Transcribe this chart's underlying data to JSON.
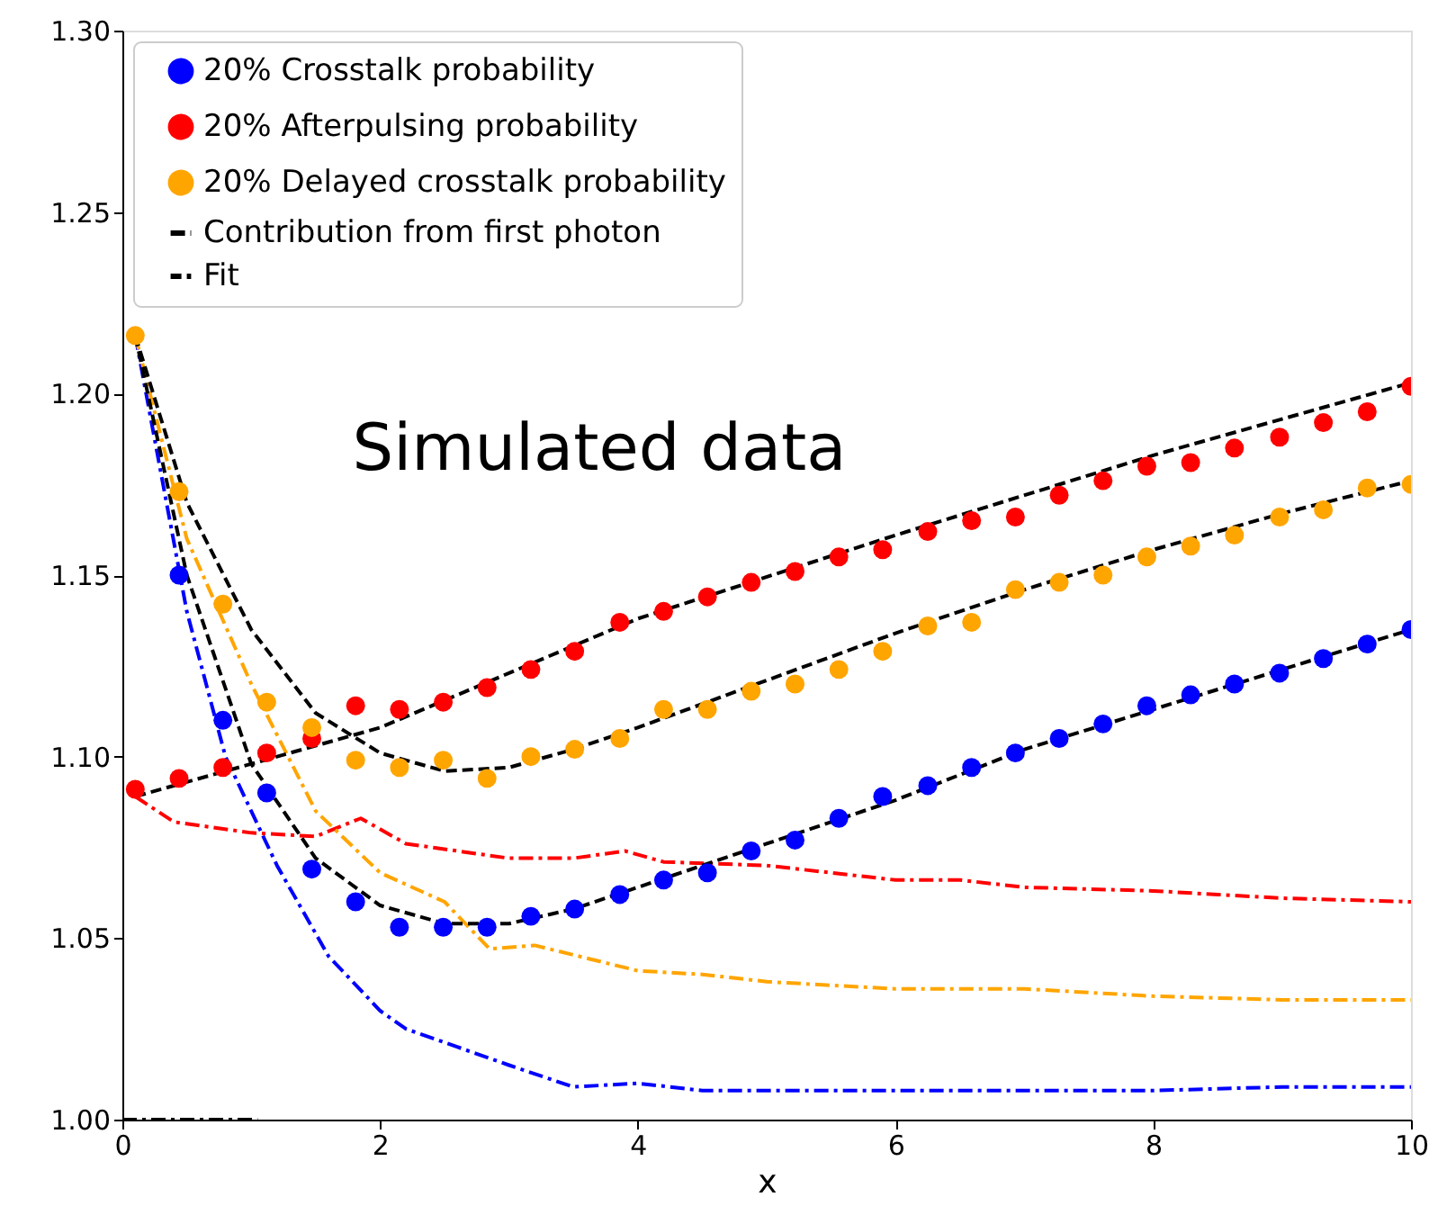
{
  "chart_data": {
    "type": "scatter",
    "xlabel": "x",
    "xlim": [
      0,
      10
    ],
    "xticks": [
      0,
      2,
      4,
      6,
      8,
      10
    ],
    "ylim": [
      1.0,
      1.3
    ],
    "yticks": [
      {
        "value": 1.0,
        "label": "1.00"
      },
      {
        "value": 1.05,
        "label": "1.05"
      },
      {
        "value": 1.1,
        "label": "1.10"
      },
      {
        "value": 1.15,
        "label": "1.15"
      },
      {
        "value": 1.2,
        "label": "1.20"
      },
      {
        "value": 1.25,
        "label": "1.25"
      },
      {
        "value": 1.3,
        "label": "1.30"
      }
    ],
    "x": [
      0.1,
      0.44,
      0.78,
      1.12,
      1.47,
      1.81,
      2.15,
      2.49,
      2.83,
      3.17,
      3.51,
      3.86,
      4.2,
      4.54,
      4.88,
      5.22,
      5.56,
      5.9,
      6.25,
      6.59,
      6.93,
      7.27,
      7.61,
      7.95,
      8.29,
      8.63,
      8.98,
      9.32,
      9.66,
      10.0
    ],
    "grid": false,
    "legend": "top left",
    "annotations": [
      "Simulated data"
    ],
    "series": [
      {
        "name": "20% Crosstalk probability",
        "marker": "circle",
        "color": "#0000ff",
        "values": [
          null,
          1.15,
          1.11,
          1.09,
          1.069,
          1.06,
          1.053,
          1.053,
          1.053,
          1.056,
          1.058,
          1.062,
          1.066,
          1.068,
          1.074,
          1.077,
          1.083,
          1.089,
          1.092,
          1.097,
          1.101,
          1.105,
          1.109,
          1.114,
          1.117,
          1.12,
          1.123,
          1.127,
          1.131,
          1.135
        ]
      },
      {
        "name": "20% Afterpulsing probability",
        "marker": "circle",
        "color": "#ff0000",
        "values": [
          1.091,
          1.094,
          1.097,
          1.101,
          1.105,
          1.114,
          1.113,
          1.115,
          1.119,
          1.124,
          1.129,
          1.137,
          1.14,
          1.144,
          1.148,
          1.151,
          1.155,
          1.157,
          1.162,
          1.165,
          1.166,
          1.172,
          1.176,
          1.18,
          1.181,
          1.185,
          1.188,
          1.192,
          1.195,
          1.202
        ]
      },
      {
        "name": "20% Delayed crosstalk probability",
        "marker": "circle",
        "color": "#ffa500",
        "values": [
          1.216,
          1.173,
          1.142,
          1.115,
          1.108,
          1.099,
          1.097,
          1.099,
          1.094,
          1.1,
          1.102,
          1.105,
          1.113,
          1.113,
          1.118,
          1.12,
          1.124,
          1.129,
          1.136,
          1.137,
          1.146,
          1.148,
          1.15,
          1.155,
          1.158,
          1.161,
          1.166,
          1.168,
          1.174,
          1.175
        ]
      },
      {
        "name": "Contribution from first photon",
        "type": "line",
        "marker": "none",
        "line_style": "dashdot",
        "color": "#000000",
        "x": [
          0,
          1.05
        ],
        "values": [
          1.0,
          1.0
        ]
      },
      {
        "type": "line",
        "marker": "none",
        "line_style": "dashdot",
        "color": "#0000ff",
        "x": [
          0.1,
          0.5,
          0.8,
          1.2,
          1.6,
          2.0,
          2.2,
          3.0,
          3.5,
          4.0,
          4.5,
          5.0,
          6.0,
          7.0,
          8.0,
          9.0,
          10.0
        ],
        "values": [
          1.216,
          1.14,
          1.1,
          1.07,
          1.045,
          1.03,
          1.025,
          1.015,
          1.009,
          1.01,
          1.008,
          1.008,
          1.008,
          1.008,
          1.008,
          1.009,
          1.009
        ]
      },
      {
        "type": "line",
        "marker": "none",
        "line_style": "dashdot",
        "color": "#ff0000",
        "x": [
          0.1,
          0.4,
          1.0,
          1.5,
          1.85,
          2.2,
          3.0,
          3.5,
          3.9,
          4.2,
          5.0,
          6.0,
          6.5,
          7.0,
          8.0,
          8.5,
          9.0,
          10.0
        ],
        "values": [
          1.089,
          1.082,
          1.079,
          1.078,
          1.083,
          1.076,
          1.072,
          1.072,
          1.074,
          1.071,
          1.07,
          1.066,
          1.066,
          1.064,
          1.063,
          1.062,
          1.061,
          1.06
        ]
      },
      {
        "type": "line",
        "marker": "none",
        "line_style": "dashdot",
        "color": "#ffa500",
        "x": [
          0.1,
          0.5,
          1.0,
          1.5,
          2.0,
          2.5,
          2.85,
          3.2,
          4.0,
          4.5,
          5.0,
          6.0,
          7.0,
          8.0,
          9.0,
          10.0
        ],
        "values": [
          1.216,
          1.16,
          1.12,
          1.085,
          1.068,
          1.06,
          1.047,
          1.048,
          1.041,
          1.04,
          1.038,
          1.036,
          1.036,
          1.034,
          1.033,
          1.033
        ]
      },
      {
        "name": "Fit",
        "type": "line",
        "marker": "none",
        "line_style": "dashed",
        "color": "#000000",
        "x": [
          0.1,
          0.5,
          1.0,
          1.5,
          2.0,
          2.5,
          3.0,
          3.5,
          4.0,
          5.0,
          6.0,
          7.0,
          8.0,
          9.0,
          10.0
        ],
        "values": [
          1.216,
          1.15,
          1.098,
          1.072,
          1.059,
          1.054,
          1.054,
          1.058,
          1.064,
          1.076,
          1.088,
          1.102,
          1.113,
          1.124,
          1.135
        ]
      },
      {
        "type": "line",
        "marker": "none",
        "line_style": "dashed",
        "color": "#000000",
        "x": [
          0.1,
          2.0,
          4.0,
          6.0,
          8.0,
          10.0
        ],
        "values": [
          1.089,
          1.108,
          1.138,
          1.161,
          1.183,
          1.203
        ]
      },
      {
        "type": "line",
        "marker": "none",
        "line_style": "dashed",
        "color": "#000000",
        "x": [
          0.1,
          0.5,
          1.0,
          1.5,
          2.0,
          2.5,
          3.0,
          3.5,
          4.0,
          5.0,
          6.0,
          7.0,
          8.0,
          9.0,
          10.0
        ],
        "values": [
          1.216,
          1.17,
          1.135,
          1.112,
          1.101,
          1.096,
          1.097,
          1.102,
          1.108,
          1.121,
          1.134,
          1.146,
          1.157,
          1.167,
          1.176
        ]
      }
    ]
  }
}
